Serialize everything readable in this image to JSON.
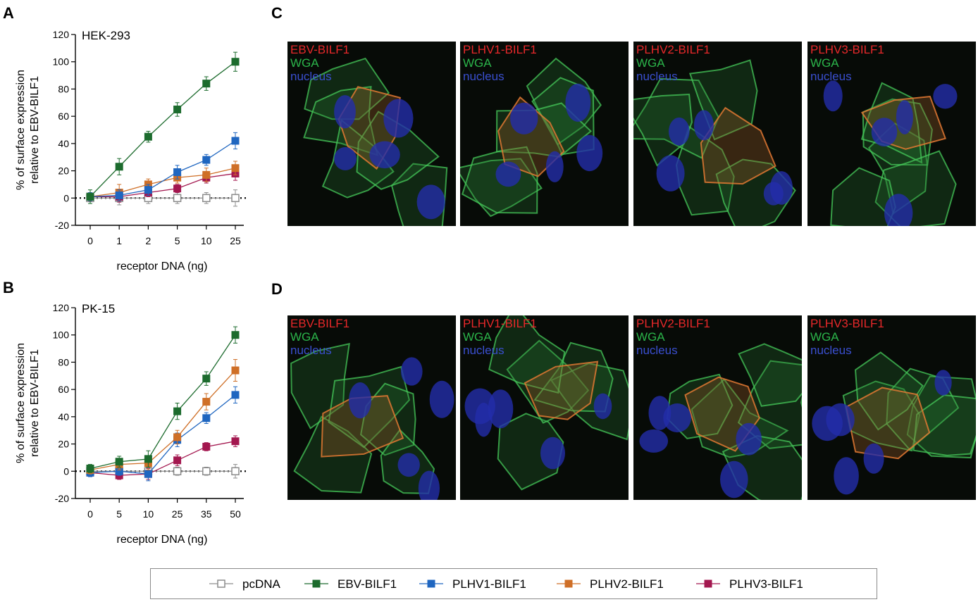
{
  "panels": {
    "A": "A",
    "B": "B",
    "C": "C",
    "D": "D"
  },
  "colors": {
    "pcdna": "#8c8c8c",
    "ebv": "#1c6b2d",
    "plhv1": "#1f66c0",
    "plhv2": "#cf6f27",
    "plhv3": "#a3174f",
    "label_red": "#e8282a",
    "label_green": "#2bb44a",
    "label_blue": "#3a4fcf"
  },
  "chart_data": [
    {
      "type": "line",
      "panel": "A",
      "title": "HEK-293",
      "xlabel": "receptor DNA (ng)",
      "ylabel_line1": "% of surface expression",
      "ylabel_line2": "relative to  EBV-BILF1",
      "categories": [
        "0",
        "1",
        "2",
        "5",
        "10",
        "25"
      ],
      "ylim": [
        -20,
        120
      ],
      "yticks": [
        "-20",
        "0",
        "20",
        "40",
        "60",
        "80",
        "100",
        "120"
      ],
      "series": [
        {
          "name": "pcDNA",
          "color": "#8c8c8c",
          "marker": "open-square",
          "values": [
            0,
            0,
            0,
            0,
            0,
            0
          ],
          "err": [
            4,
            5,
            4,
            4,
            4,
            6
          ]
        },
        {
          "name": "PLHV3-BILF1",
          "color": "#a3174f",
          "marker": "square",
          "values": [
            1,
            1,
            4,
            7,
            15,
            18
          ],
          "err": [
            3,
            4,
            3,
            3,
            4,
            5
          ]
        },
        {
          "name": "PLHV2-BILF1",
          "color": "#cf6f27",
          "marker": "square",
          "values": [
            1,
            4,
            10,
            15,
            17,
            22
          ],
          "err": [
            3,
            6,
            4,
            4,
            5,
            5
          ]
        },
        {
          "name": "PLHV1-BILF1",
          "color": "#1f66c0",
          "marker": "square",
          "values": [
            1,
            2,
            6,
            19,
            28,
            42
          ],
          "err": [
            3,
            4,
            4,
            5,
            4,
            6
          ]
        },
        {
          "name": "EBV-BILF1",
          "color": "#1c6b2d",
          "marker": "square",
          "values": [
            1,
            23,
            45,
            65,
            84,
            100
          ],
          "err": [
            5,
            6,
            4,
            5,
            5,
            7
          ]
        }
      ]
    },
    {
      "type": "line",
      "panel": "B",
      "title": "PK-15",
      "xlabel": "receptor DNA (ng)",
      "ylabel_line1": "% of surface expression",
      "ylabel_line2": "relative to  EBV-BILF1",
      "categories": [
        "0",
        "5",
        "10",
        "25",
        "35",
        "50"
      ],
      "ylim": [
        -20,
        120
      ],
      "yticks": [
        "-20",
        "0",
        "20",
        "40",
        "60",
        "80",
        "100",
        "120"
      ],
      "series": [
        {
          "name": "pcDNA",
          "color": "#8c8c8c",
          "marker": "open-square",
          "values": [
            0,
            0,
            0,
            0,
            0,
            0
          ],
          "err": [
            3,
            3,
            4,
            3,
            3,
            5
          ]
        },
        {
          "name": "PLHV3-BILF1",
          "color": "#a3174f",
          "marker": "square",
          "values": [
            -1,
            -3,
            -2,
            8,
            18,
            22
          ],
          "err": [
            3,
            3,
            4,
            4,
            3,
            4
          ]
        },
        {
          "name": "PLHV1-BILF1",
          "color": "#1f66c0",
          "marker": "square",
          "values": [
            -1,
            0,
            -2,
            23,
            39,
            56
          ],
          "err": [
            3,
            3,
            5,
            5,
            4,
            6
          ]
        },
        {
          "name": "PLHV2-BILF1",
          "color": "#cf6f27",
          "marker": "square",
          "values": [
            1,
            5,
            6,
            25,
            51,
            74
          ],
          "err": [
            3,
            4,
            5,
            5,
            6,
            8
          ]
        },
        {
          "name": "EBV-BILF1",
          "color": "#1c6b2d",
          "marker": "square",
          "values": [
            2,
            7,
            9,
            44,
            68,
            100
          ],
          "err": [
            3,
            4,
            6,
            6,
            5,
            6
          ]
        }
      ]
    }
  ],
  "micrographs": {
    "C": [
      {
        "title": "EBV-BILF1",
        "wga": "WGA",
        "nucleus": "nucleus"
      },
      {
        "title": "PLHV1-BILF1",
        "wga": "WGA",
        "nucleus": "nucleus"
      },
      {
        "title": "PLHV2-BILF1",
        "wga": "WGA",
        "nucleus": "nucleus"
      },
      {
        "title": "PLHV3-BILF1",
        "wga": "WGA",
        "nucleus": "nucleus"
      }
    ],
    "D": [
      {
        "title": "EBV-BILF1",
        "wga": "WGA",
        "nucleus": "nucleus"
      },
      {
        "title": "PLHV1-BILF1",
        "wga": "WGA",
        "nucleus": "nucleus"
      },
      {
        "title": "PLHV2-BILF1",
        "wga": "WGA",
        "nucleus": "nucleus"
      },
      {
        "title": "PLHV3-BILF1",
        "wga": "WGA",
        "nucleus": "nucleus"
      }
    ]
  },
  "legend": [
    {
      "label": "pcDNA",
      "color": "#8c8c8c",
      "marker": "open-square"
    },
    {
      "label": "EBV-BILF1",
      "color": "#1c6b2d",
      "marker": "square"
    },
    {
      "label": "PLHV1-BILF1",
      "color": "#1f66c0",
      "marker": "square"
    },
    {
      "label": "PLHV2-BILF1",
      "color": "#cf6f27",
      "marker": "square"
    },
    {
      "label": "PLHV3-BILF1",
      "color": "#a3174f",
      "marker": "square"
    }
  ]
}
